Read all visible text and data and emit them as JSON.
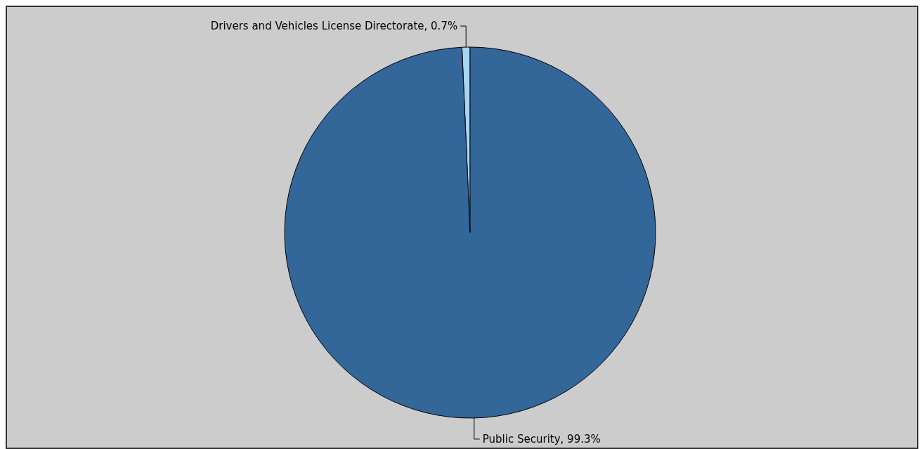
{
  "chart_data": {
    "type": "pie",
    "categories": [
      "Drivers and Vehicles License Directorate",
      "Public Security"
    ],
    "values": [
      0.7,
      99.3
    ],
    "colors": [
      "#a8d4f8",
      "#336699"
    ],
    "value_labels": [
      ", 0.7%",
      ", 99.3%"
    ],
    "legend": false
  }
}
